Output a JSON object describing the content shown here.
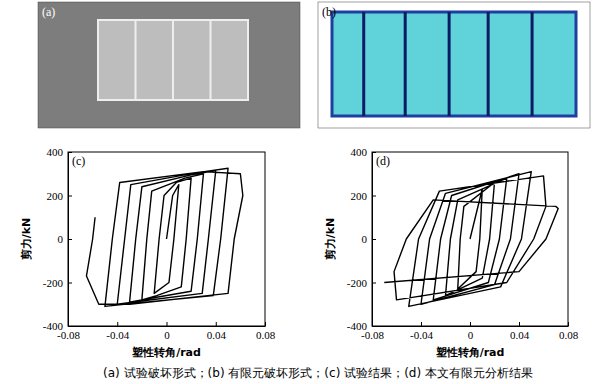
{
  "figure": {
    "panels": [
      "(a)",
      "(b)"
    ],
    "caption": "(a) 试验破坏形式；(b) 有限元破坏形式；(c) 试验结果；(d) 本文有限元分析结果"
  },
  "chart_data": [
    {
      "type": "line",
      "panel_label": "(c)",
      "x_label": "塑性转角/rad",
      "y_label": "剪力/kN",
      "xlim": [
        -0.08,
        0.08
      ],
      "xticks": [
        -0.08,
        -0.04,
        0,
        0.04,
        0.08
      ],
      "ylim": [
        -400,
        400
      ],
      "yticks": [
        -400,
        -200,
        0,
        200,
        400
      ],
      "grid": false,
      "series": [
        {
          "name": "试验结果",
          "color": "#000000",
          "x": [
            0,
            0.005,
            0.01,
            0.006,
            0.002,
            -0.01,
            -0.006,
            -0.002,
            0.008,
            0.02,
            0.016,
            0.012,
            -0.008,
            -0.02,
            -0.016,
            -0.012,
            0.015,
            0.03,
            0.025,
            0.02,
            -0.015,
            -0.03,
            -0.025,
            -0.02,
            0.02,
            0.04,
            0.034,
            0.029,
            -0.02,
            -0.04,
            -0.034,
            -0.029,
            0.025,
            0.05,
            0.044,
            0.038,
            -0.025,
            -0.05,
            -0.044,
            -0.038,
            0.03,
            0.06,
            0.062,
            0.055,
            0.05,
            -0.03,
            -0.055,
            -0.065,
            -0.06,
            -0.058
          ],
          "values": [
            0,
            200,
            250,
            0,
            -200,
            -250,
            0,
            200,
            260,
            280,
            0,
            -220,
            -260,
            -280,
            0,
            220,
            280,
            300,
            0,
            -240,
            -275,
            -290,
            0,
            240,
            295,
            315,
            0,
            -250,
            -285,
            -300,
            0,
            250,
            305,
            325,
            0,
            -260,
            -295,
            -310,
            0,
            260,
            310,
            300,
            200,
            0,
            -250,
            -300,
            -300,
            -170,
            0,
            100
          ]
        }
      ]
    },
    {
      "type": "line",
      "panel_label": "(d)",
      "x_label": "塑性转角/rad",
      "y_label": "剪力/kN",
      "xlim": [
        -0.08,
        0.08
      ],
      "xticks": [
        -0.08,
        -0.04,
        0,
        0.04,
        0.08
      ],
      "ylim": [
        -400,
        400
      ],
      "yticks": [
        -400,
        -200,
        0,
        200,
        400
      ],
      "grid": false,
      "series": [
        {
          "name": "本文有限元分析结果",
          "color": "#000000",
          "x": [
            0,
            0.01,
            0.008,
            0.005,
            -0.01,
            -0.008,
            -0.005,
            0.02,
            0.016,
            0.01,
            -0.02,
            -0.016,
            -0.01,
            0.03,
            0.024,
            0.015,
            -0.03,
            -0.024,
            -0.015,
            0.04,
            0.033,
            0.02,
            -0.04,
            -0.033,
            -0.02,
            0.05,
            0.042,
            0.025,
            -0.05,
            -0.042,
            -0.025,
            0.06,
            0.062,
            0.052,
            0.03,
            -0.06,
            -0.062,
            -0.052,
            -0.03,
            0.07,
            0.072,
            0.062,
            0.04,
            -0.07
          ],
          "values": [
            0,
            230,
            0,
            -150,
            -230,
            0,
            150,
            260,
            0,
            -180,
            -260,
            0,
            180,
            280,
            0,
            -200,
            -280,
            0,
            200,
            300,
            0,
            -210,
            -300,
            0,
            210,
            310,
            0,
            -220,
            -310,
            0,
            220,
            290,
            150,
            0,
            -200,
            -280,
            -150,
            0,
            180,
            150,
            140,
            0,
            -150,
            -200
          ]
        }
      ]
    }
  ]
}
